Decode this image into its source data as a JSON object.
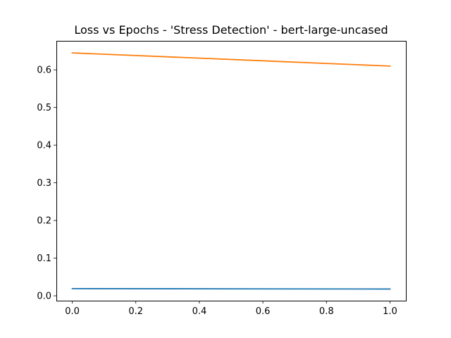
{
  "chart_data": {
    "type": "line",
    "title": "Loss vs Epochs - 'Stress Detection' - bert-large-uncased",
    "xlabel": "",
    "ylabel": "",
    "x": [
      0.0,
      1.0
    ],
    "xlim": [
      -0.05,
      1.05
    ],
    "ylim": [
      -0.013,
      0.677
    ],
    "xticks": [
      0.0,
      0.2,
      0.4,
      0.6,
      0.8,
      1.0
    ],
    "xtick_labels": [
      "0.0",
      "0.2",
      "0.4",
      "0.6",
      "0.8",
      "1.0"
    ],
    "yticks": [
      0.0,
      0.1,
      0.2,
      0.3,
      0.4,
      0.5,
      0.6
    ],
    "ytick_labels": [
      "0.0",
      "0.1",
      "0.2",
      "0.3",
      "0.4",
      "0.5",
      "0.6"
    ],
    "grid": false,
    "legend": "none",
    "series": [
      {
        "values": [
          0.019,
          0.018
        ],
        "color": "#1f77b4"
      },
      {
        "values": [
          0.645,
          0.61
        ],
        "color": "#ff7f0e"
      }
    ]
  }
}
